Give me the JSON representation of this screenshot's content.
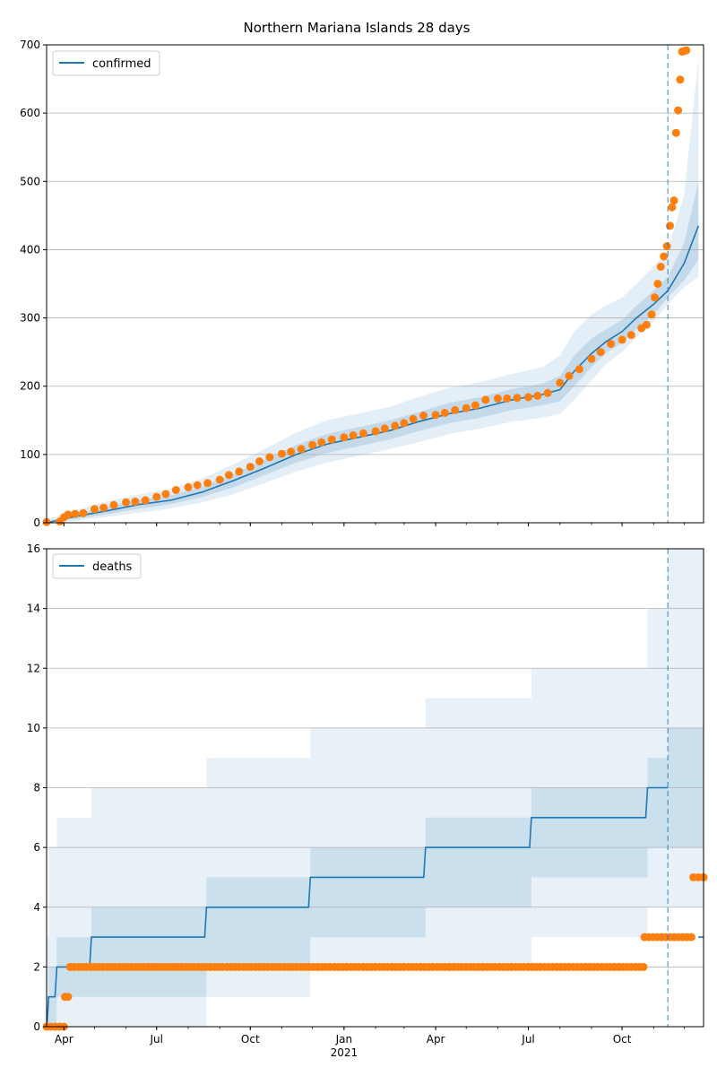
{
  "title": "Northern Mariana Islands 28 days",
  "chart_data": [
    {
      "type": "line",
      "panel": "top",
      "legend": [
        "confirmed"
      ],
      "legend_placement": "top-left",
      "grid": "y",
      "ylim": [
        0,
        700
      ],
      "yticks": [
        0,
        100,
        200,
        300,
        400,
        500,
        600,
        700
      ],
      "forecast_start": "2021-11-15",
      "model_x": [
        "2020-03-15",
        "2020-04-15",
        "2020-05-15",
        "2020-06-15",
        "2020-07-15",
        "2020-08-15",
        "2020-09-15",
        "2020-10-15",
        "2020-11-15",
        "2020-12-15",
        "2021-01-15",
        "2021-02-15",
        "2021-03-15",
        "2021-04-15",
        "2021-05-15",
        "2021-06-15",
        "2021-07-15",
        "2021-08-01",
        "2021-08-15",
        "2021-09-01",
        "2021-09-15",
        "2021-10-01",
        "2021-10-15",
        "2021-11-01",
        "2021-11-15",
        "2021-12-01",
        "2021-12-15"
      ],
      "model_y": [
        0,
        10,
        18,
        27,
        33,
        45,
        62,
        80,
        100,
        115,
        125,
        135,
        148,
        160,
        168,
        180,
        188,
        195,
        222,
        248,
        265,
        280,
        300,
        320,
        340,
        380,
        435
      ],
      "band_inner_lower": [
        0,
        6,
        13,
        21,
        27,
        38,
        52,
        70,
        88,
        102,
        112,
        122,
        134,
        146,
        154,
        165,
        172,
        178,
        200,
        228,
        248,
        264,
        284,
        305,
        330,
        355,
        385
      ],
      "band_inner_upper": [
        2,
        14,
        24,
        34,
        40,
        53,
        72,
        92,
        114,
        130,
        140,
        150,
        162,
        176,
        184,
        196,
        204,
        215,
        245,
        270,
        283,
        297,
        318,
        340,
        360,
        410,
        500
      ],
      "band_outer_lower": [
        0,
        3,
        9,
        15,
        21,
        30,
        42,
        58,
        75,
        88,
        98,
        108,
        118,
        130,
        138,
        148,
        154,
        160,
        180,
        208,
        232,
        250,
        272,
        295,
        320,
        345,
        360
      ],
      "band_outer_upper": [
        5,
        20,
        32,
        42,
        50,
        65,
        86,
        108,
        132,
        150,
        160,
        170,
        184,
        198,
        206,
        218,
        228,
        245,
        280,
        305,
        318,
        330,
        350,
        375,
        400,
        480,
        680
      ],
      "obs_x": [
        "2020-03-15",
        "2020-03-28",
        "2020-04-01",
        "2020-04-05",
        "2020-04-12",
        "2020-04-20",
        "2020-05-01",
        "2020-05-10",
        "2020-05-20",
        "2020-06-01",
        "2020-06-10",
        "2020-06-20",
        "2020-07-01",
        "2020-07-10",
        "2020-07-20",
        "2020-08-01",
        "2020-08-10",
        "2020-08-20",
        "2020-09-01",
        "2020-09-10",
        "2020-09-20",
        "2020-10-01",
        "2020-10-10",
        "2020-10-20",
        "2020-11-01",
        "2020-11-10",
        "2020-11-20",
        "2020-12-01",
        "2020-12-10",
        "2020-12-20",
        "2021-01-01",
        "2021-01-10",
        "2021-01-20",
        "2021-02-01",
        "2021-02-10",
        "2021-02-20",
        "2021-03-01",
        "2021-03-10",
        "2021-03-20",
        "2021-04-01",
        "2021-04-10",
        "2021-04-20",
        "2021-05-01",
        "2021-05-10",
        "2021-05-20",
        "2021-06-01",
        "2021-06-10",
        "2021-06-20",
        "2021-07-01",
        "2021-07-10",
        "2021-07-20",
        "2021-08-01",
        "2021-08-10",
        "2021-08-20",
        "2021-09-01",
        "2021-09-10",
        "2021-09-20",
        "2021-10-01",
        "2021-10-10",
        "2021-10-20",
        "2021-10-25",
        "2021-10-30",
        "2021-11-02",
        "2021-11-05",
        "2021-11-08",
        "2021-11-11",
        "2021-11-14",
        "2021-11-17",
        "2021-11-19",
        "2021-11-21",
        "2021-11-23",
        "2021-11-25",
        "2021-11-27",
        "2021-11-29",
        "2021-12-01",
        "2021-12-03"
      ],
      "obs_y": [
        1,
        2,
        8,
        12,
        13,
        14,
        20,
        22,
        26,
        30,
        31,
        33,
        38,
        42,
        48,
        52,
        55,
        58,
        63,
        70,
        75,
        82,
        90,
        96,
        101,
        104,
        108,
        114,
        118,
        122,
        125,
        128,
        131,
        134,
        138,
        142,
        146,
        152,
        157,
        158,
        161,
        165,
        168,
        172,
        180,
        182,
        182,
        183,
        184,
        186,
        190,
        205,
        215,
        225,
        240,
        250,
        262,
        268,
        275,
        285,
        290,
        305,
        330,
        350,
        375,
        390,
        405,
        435,
        462,
        472,
        571,
        604,
        649,
        690,
        691,
        692
      ],
      "xlim": [
        "2020-03-15",
        "2021-12-20"
      ]
    },
    {
      "type": "line",
      "panel": "bottom",
      "legend": [
        "deaths"
      ],
      "legend_placement": "top-left",
      "grid": "y",
      "ylim": [
        0,
        16
      ],
      "yticks": [
        0,
        2,
        4,
        6,
        8,
        10,
        12,
        14,
        16
      ],
      "forecast_start": "2021-11-15",
      "model_step_x": [
        "2020-03-15",
        "2020-03-17",
        "2020-03-25",
        "2020-04-28",
        "2020-08-19",
        "2020-11-29",
        "2021-03-22",
        "2021-07-04",
        "2021-10-26",
        "2021-11-15"
      ],
      "model_step_y": [
        0,
        1,
        2,
        3,
        4,
        5,
        6,
        7,
        8,
        8
      ],
      "model_tail_y": 3,
      "band_inner_lower": [
        0,
        0,
        1,
        1,
        2,
        3,
        4,
        5,
        6,
        6
      ],
      "band_inner_upper": [
        1,
        2,
        3,
        4,
        5,
        6,
        7,
        8,
        9,
        10
      ],
      "band_outer_lower": [
        0,
        0,
        0,
        0,
        1,
        2,
        2,
        3,
        4,
        4
      ],
      "band_outer_upper": [
        3,
        6,
        7,
        8,
        9,
        10,
        11,
        12,
        14,
        16
      ],
      "obs_segments": [
        {
          "x": [
            "2020-03-15",
            "2020-04-01"
          ],
          "y": 0
        },
        {
          "x": [
            "2020-04-02",
            "2020-04-05"
          ],
          "y": 1
        },
        {
          "x": [
            "2020-04-07",
            "2021-10-22"
          ],
          "y": 2
        },
        {
          "x": [
            "2021-10-23",
            "2021-12-08"
          ],
          "y": 3
        },
        {
          "x": [
            "2021-12-10",
            "2021-12-20"
          ],
          "y": 5
        }
      ],
      "xticks": [
        {
          "date": "2020-04-01",
          "label": "Apr"
        },
        {
          "date": "2020-07-01",
          "label": "Jul"
        },
        {
          "date": "2020-10-01",
          "label": "Oct"
        },
        {
          "date": "2021-01-01",
          "label": "Jan"
        },
        {
          "date": "2021-04-01",
          "label": "Apr"
        },
        {
          "date": "2021-07-01",
          "label": "Jul"
        },
        {
          "date": "2021-10-01",
          "label": "Oct"
        }
      ],
      "xlabel_year": "2021",
      "xlim": [
        "2020-03-15",
        "2021-12-20"
      ]
    }
  ],
  "colors": {
    "model": "#1f77b4",
    "observed": "#ff7f0e",
    "band": "#1f77b4",
    "grid": "#b0b0b0"
  }
}
